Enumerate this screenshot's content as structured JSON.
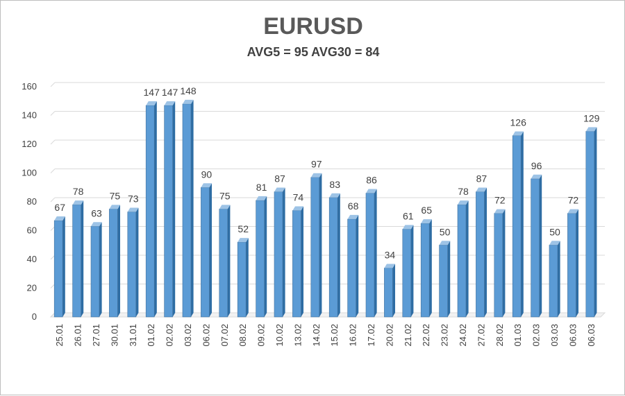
{
  "chart_data": {
    "type": "bar",
    "title": "EURUSD",
    "subtitle": "AVG5 = 95 AVG30 = 84",
    "categories": [
      "25.01",
      "26.01",
      "27.01",
      "30.01",
      "31.01",
      "01.02",
      "02.02",
      "03.02",
      "06.02",
      "07.02",
      "08.02",
      "09.02",
      "10.02",
      "13.02",
      "14.02",
      "15.02",
      "16.02",
      "17.02",
      "20.02",
      "21.02",
      "22.02",
      "23.02",
      "24.02",
      "27.02",
      "28.02",
      "01.03",
      "02.03",
      "03.03",
      "06.03",
      "06.03"
    ],
    "values": [
      67,
      78,
      63,
      75,
      73,
      147,
      147,
      148,
      90,
      75,
      52,
      81,
      87,
      74,
      97,
      83,
      68,
      86,
      34,
      61,
      65,
      50,
      78,
      87,
      72,
      126,
      96,
      50,
      72,
      129
    ],
    "ylim": [
      0,
      160
    ],
    "yticks": [
      0,
      20,
      40,
      60,
      80,
      100,
      120,
      140,
      160
    ],
    "grid": true,
    "legend": "none",
    "colors": {
      "bar_front": "#5b9bd5",
      "bar_side": "#2e6da4",
      "bar_top": "#9dc3e6",
      "grid": "#d9d9d9",
      "text": "#404040"
    }
  }
}
